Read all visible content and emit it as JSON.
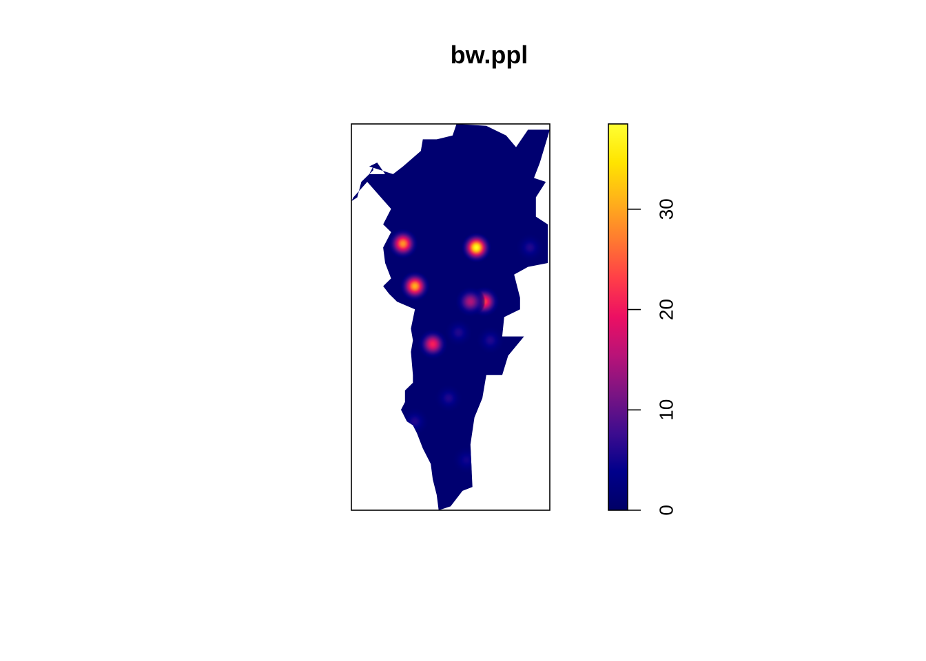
{
  "chart_data": {
    "type": "heatmap",
    "title": "bw.ppl",
    "xlabel": "",
    "ylabel": "",
    "description_of_surface": "kernel intensity raster over an irregular region",
    "colorbar": {
      "range": [
        0,
        38.5
      ],
      "ticks": [
        0,
        10,
        20,
        30
      ],
      "tick_labels": [
        "0",
        "10",
        "20",
        "30"
      ],
      "palette": [
        "#000066",
        "#00008B",
        "#3D0C8F",
        "#7A1483",
        "#B81378",
        "#EC0F63",
        "#FF3E48",
        "#FF7A30",
        "#FFB11A",
        "#FFE400",
        "#FFFF33"
      ]
    },
    "background_value": 1,
    "hotspots": [
      {
        "x": 0.26,
        "y": 0.69,
        "value": 29
      },
      {
        "x": 0.63,
        "y": 0.68,
        "value": 38
      },
      {
        "x": 0.32,
        "y": 0.58,
        "value": 31
      },
      {
        "x": 0.67,
        "y": 0.54,
        "value": 23
      },
      {
        "x": 0.6,
        "y": 0.54,
        "value": 15
      },
      {
        "x": 0.41,
        "y": 0.43,
        "value": 21
      },
      {
        "x": 0.9,
        "y": 0.68,
        "value": 6
      },
      {
        "x": 0.54,
        "y": 0.46,
        "value": 6
      },
      {
        "x": 0.7,
        "y": 0.44,
        "value": 6
      },
      {
        "x": 0.49,
        "y": 0.29,
        "value": 6
      },
      {
        "x": 0.32,
        "y": 0.23,
        "value": 6
      },
      {
        "x": 0.58,
        "y": 0.13,
        "value": 5
      }
    ],
    "region_polygon": [
      [
        0.53,
        1.0
      ],
      [
        0.68,
        0.995
      ],
      [
        0.78,
        0.97
      ],
      [
        0.83,
        0.94
      ],
      [
        0.89,
        0.985
      ],
      [
        1.0,
        0.985
      ],
      [
        0.95,
        0.9
      ],
      [
        0.92,
        0.86
      ],
      [
        0.98,
        0.85
      ],
      [
        0.93,
        0.81
      ],
      [
        0.93,
        0.76
      ],
      [
        0.99,
        0.74
      ],
      [
        0.99,
        0.64
      ],
      [
        0.89,
        0.63
      ],
      [
        0.82,
        0.61
      ],
      [
        0.85,
        0.55
      ],
      [
        0.85,
        0.52
      ],
      [
        0.77,
        0.5
      ],
      [
        0.76,
        0.45
      ],
      [
        0.87,
        0.45
      ],
      [
        0.79,
        0.4
      ],
      [
        0.76,
        0.35
      ],
      [
        0.68,
        0.35
      ],
      [
        0.66,
        0.29
      ],
      [
        0.62,
        0.24
      ],
      [
        0.6,
        0.17
      ],
      [
        0.61,
        0.06
      ],
      [
        0.56,
        0.05
      ],
      [
        0.5,
        0.01
      ],
      [
        0.44,
        0.0
      ],
      [
        0.43,
        0.04
      ],
      [
        0.41,
        0.08
      ],
      [
        0.4,
        0.12
      ],
      [
        0.36,
        0.16
      ],
      [
        0.33,
        0.2
      ],
      [
        0.31,
        0.22
      ],
      [
        0.28,
        0.23
      ],
      [
        0.25,
        0.26
      ],
      [
        0.27,
        0.28
      ],
      [
        0.27,
        0.31
      ],
      [
        0.31,
        0.33
      ],
      [
        0.31,
        0.35
      ],
      [
        0.3,
        0.41
      ],
      [
        0.31,
        0.44
      ],
      [
        0.3,
        0.47
      ],
      [
        0.32,
        0.52
      ],
      [
        0.23,
        0.54
      ],
      [
        0.19,
        0.56
      ],
      [
        0.16,
        0.58
      ],
      [
        0.2,
        0.6
      ],
      [
        0.17,
        0.64
      ],
      [
        0.16,
        0.68
      ],
      [
        0.2,
        0.72
      ],
      [
        0.16,
        0.74
      ],
      [
        0.2,
        0.78
      ],
      [
        0.08,
        0.85
      ],
      [
        0.01,
        0.81
      ],
      [
        0.0,
        0.8
      ],
      [
        0.03,
        0.81
      ],
      [
        0.05,
        0.85
      ],
      [
        0.11,
        0.88
      ],
      [
        0.11,
        0.89
      ],
      [
        0.09,
        0.87
      ],
      [
        0.17,
        0.87
      ],
      [
        0.13,
        0.9
      ],
      [
        0.09,
        0.89
      ],
      [
        0.09,
        0.89
      ],
      [
        0.21,
        0.87
      ],
      [
        0.26,
        0.89
      ],
      [
        0.35,
        0.93
      ],
      [
        0.36,
        0.96
      ],
      [
        0.43,
        0.96
      ],
      [
        0.51,
        0.97
      ]
    ]
  }
}
